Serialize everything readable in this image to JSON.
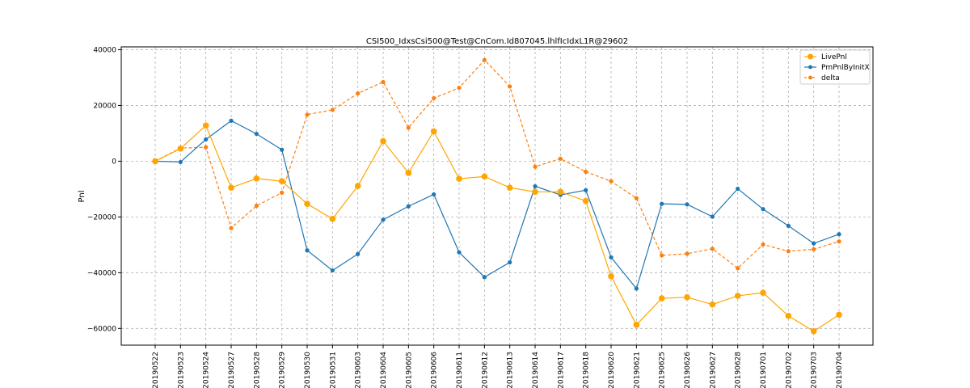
{
  "chart_data": {
    "type": "line",
    "title": "CSI500_IdxsCsi500@Test@CnCom.Id807045.lhlfIcIdxL1R@29602",
    "xlabel": "",
    "ylabel": "Pnl",
    "ylim": [
      -66000,
      41000
    ],
    "yticks": [
      40000,
      20000,
      0,
      -20000,
      -40000,
      -60000
    ],
    "grid": true,
    "legend_position": "top-right",
    "categories": [
      "20190522",
      "20190523",
      "20190524",
      "20190527",
      "20190528",
      "20190529",
      "20190530",
      "20190531",
      "20190603",
      "20190604",
      "20190605",
      "20190606",
      "20190611",
      "20190612",
      "20190613",
      "20190614",
      "20190617",
      "20190618",
      "20190620",
      "20190621",
      "20190625",
      "20190626",
      "20190627",
      "20190628",
      "20190701",
      "20190702",
      "20190703",
      "20190704"
    ],
    "series": [
      {
        "name": "LivePnl",
        "color": "#ffa500",
        "style": "solid",
        "marker_size": "large",
        "values": [
          0,
          4500,
          12800,
          -9500,
          -6200,
          -7200,
          -15300,
          -20700,
          -8900,
          7200,
          -4200,
          10700,
          -6300,
          -5500,
          -9500,
          -11000,
          -11000,
          -14300,
          -41300,
          -58700,
          -49200,
          -48800,
          -51400,
          -48300,
          -47200,
          -55500,
          -61000,
          -55100
        ]
      },
      {
        "name": "PmPnlByInitX",
        "color": "#1f77b4",
        "style": "solid",
        "marker_size": "small",
        "values": [
          0,
          -300,
          7800,
          14500,
          9800,
          4100,
          -32000,
          -39200,
          -33300,
          -21000,
          -16200,
          -11900,
          -32700,
          -41600,
          -36300,
          -9000,
          -12100,
          -10400,
          -34500,
          -45700,
          -15300,
          -15500,
          -19900,
          -9900,
          -17200,
          -23200,
          -29500,
          -26200
        ]
      },
      {
        "name": "delta",
        "color": "#ff7f0e",
        "style": "dashed",
        "marker_size": "small",
        "values": [
          0,
          4700,
          5000,
          -24000,
          -16000,
          -11300,
          16700,
          18400,
          24300,
          28400,
          12000,
          22600,
          26300,
          36300,
          26800,
          -2000,
          900,
          -3800,
          -7200,
          -13300,
          -33800,
          -33200,
          -31400,
          -38400,
          -29900,
          -32300,
          -31600,
          -28800
        ]
      }
    ]
  }
}
